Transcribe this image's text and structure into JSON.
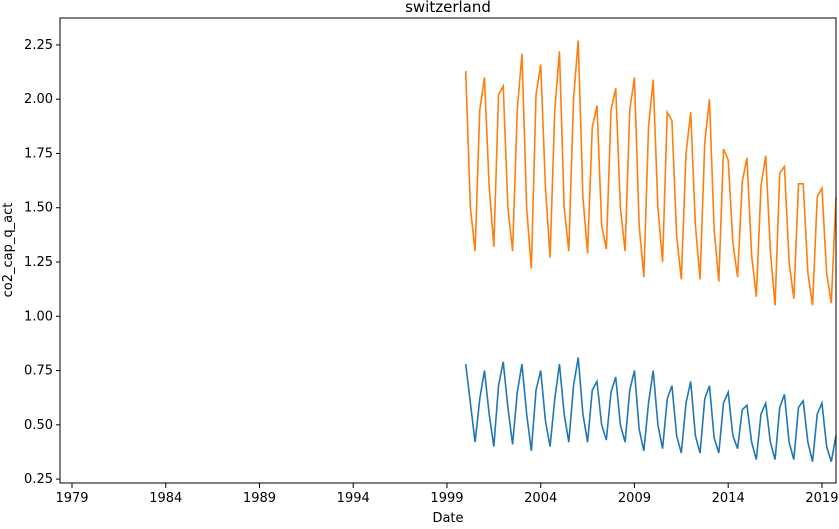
{
  "chart_data": {
    "type": "line",
    "title": "switzerland",
    "x_label": "Date",
    "y_label": "co2_cap_q_act",
    "x": [
      2000.0,
      2000.25,
      2000.5,
      2000.75,
      2001.0,
      2001.25,
      2001.5,
      2001.75,
      2002.0,
      2002.25,
      2002.5,
      2002.75,
      2003.0,
      2003.25,
      2003.5,
      2003.75,
      2004.0,
      2004.25,
      2004.5,
      2004.75,
      2005.0,
      2005.25,
      2005.5,
      2005.75,
      2006.0,
      2006.25,
      2006.5,
      2006.75,
      2007.0,
      2007.25,
      2007.5,
      2007.75,
      2008.0,
      2008.25,
      2008.5,
      2008.75,
      2009.0,
      2009.25,
      2009.5,
      2009.75,
      2010.0,
      2010.25,
      2010.5,
      2010.75,
      2011.0,
      2011.25,
      2011.5,
      2011.75,
      2012.0,
      2012.25,
      2012.5,
      2012.75,
      2013.0,
      2013.25,
      2013.5,
      2013.75,
      2014.0,
      2014.25,
      2014.5,
      2014.75,
      2015.0,
      2015.25,
      2015.5,
      2015.75,
      2016.0,
      2016.25,
      2016.5,
      2016.75,
      2017.0,
      2017.25,
      2017.5,
      2017.75,
      2018.0,
      2018.25,
      2018.5,
      2018.75,
      2019.0,
      2019.25,
      2019.5,
      2019.75
    ],
    "series": [
      {
        "color": "#ff7f0e",
        "values": [
          2.13,
          1.5,
          1.3,
          1.95,
          2.1,
          1.6,
          1.32,
          2.02,
          2.06,
          1.5,
          1.3,
          1.95,
          2.21,
          1.5,
          1.22,
          2.02,
          2.16,
          1.6,
          1.27,
          1.95,
          2.22,
          1.5,
          1.3,
          2.0,
          2.27,
          1.55,
          1.29,
          1.87,
          1.97,
          1.42,
          1.31,
          1.95,
          2.05,
          1.5,
          1.3,
          1.95,
          2.1,
          1.42,
          1.18,
          1.87,
          2.09,
          1.5,
          1.25,
          1.94,
          1.9,
          1.37,
          1.17,
          1.75,
          1.94,
          1.42,
          1.17,
          1.8,
          2.0,
          1.4,
          1.16,
          1.77,
          1.72,
          1.34,
          1.18,
          1.62,
          1.73,
          1.28,
          1.09,
          1.6,
          1.74,
          1.3,
          1.05,
          1.66,
          1.69,
          1.25,
          1.08,
          1.61,
          1.61,
          1.2,
          1.05,
          1.55,
          1.59,
          1.2,
          1.06,
          1.55
        ]
      },
      {
        "color": "#1f77b4",
        "values": [
          0.78,
          0.6,
          0.42,
          0.62,
          0.75,
          0.55,
          0.4,
          0.68,
          0.79,
          0.58,
          0.41,
          0.65,
          0.78,
          0.55,
          0.38,
          0.66,
          0.75,
          0.52,
          0.4,
          0.62,
          0.78,
          0.55,
          0.42,
          0.68,
          0.81,
          0.55,
          0.42,
          0.66,
          0.7,
          0.5,
          0.43,
          0.65,
          0.72,
          0.5,
          0.42,
          0.66,
          0.75,
          0.48,
          0.38,
          0.6,
          0.75,
          0.5,
          0.39,
          0.62,
          0.68,
          0.45,
          0.37,
          0.6,
          0.7,
          0.45,
          0.37,
          0.62,
          0.68,
          0.44,
          0.37,
          0.6,
          0.65,
          0.45,
          0.39,
          0.57,
          0.59,
          0.42,
          0.34,
          0.55,
          0.6,
          0.42,
          0.34,
          0.58,
          0.64,
          0.42,
          0.34,
          0.58,
          0.61,
          0.42,
          0.33,
          0.55,
          0.6,
          0.4,
          0.33,
          0.45
        ]
      }
    ],
    "xlim": [
      1978.36,
      2019.75
    ],
    "xticks": [
      1979,
      1984,
      1989,
      1994,
      1999,
      2004,
      2009,
      2014,
      2019
    ],
    "ylim": [
      0.232,
      2.374
    ],
    "yticks": [
      {
        "value": 0.25,
        "label": "0.25"
      },
      {
        "value": 0.5,
        "label": "0.50"
      },
      {
        "value": 0.75,
        "label": "0.75"
      },
      {
        "value": 1,
        "label": "1.00"
      },
      {
        "value": 1.25,
        "label": "1.25"
      },
      {
        "value": 1.5,
        "label": "1.50"
      },
      {
        "value": 1.75,
        "label": "1.75"
      },
      {
        "value": 2,
        "label": "2.00"
      },
      {
        "value": 2.25,
        "label": "2.25"
      }
    ]
  }
}
